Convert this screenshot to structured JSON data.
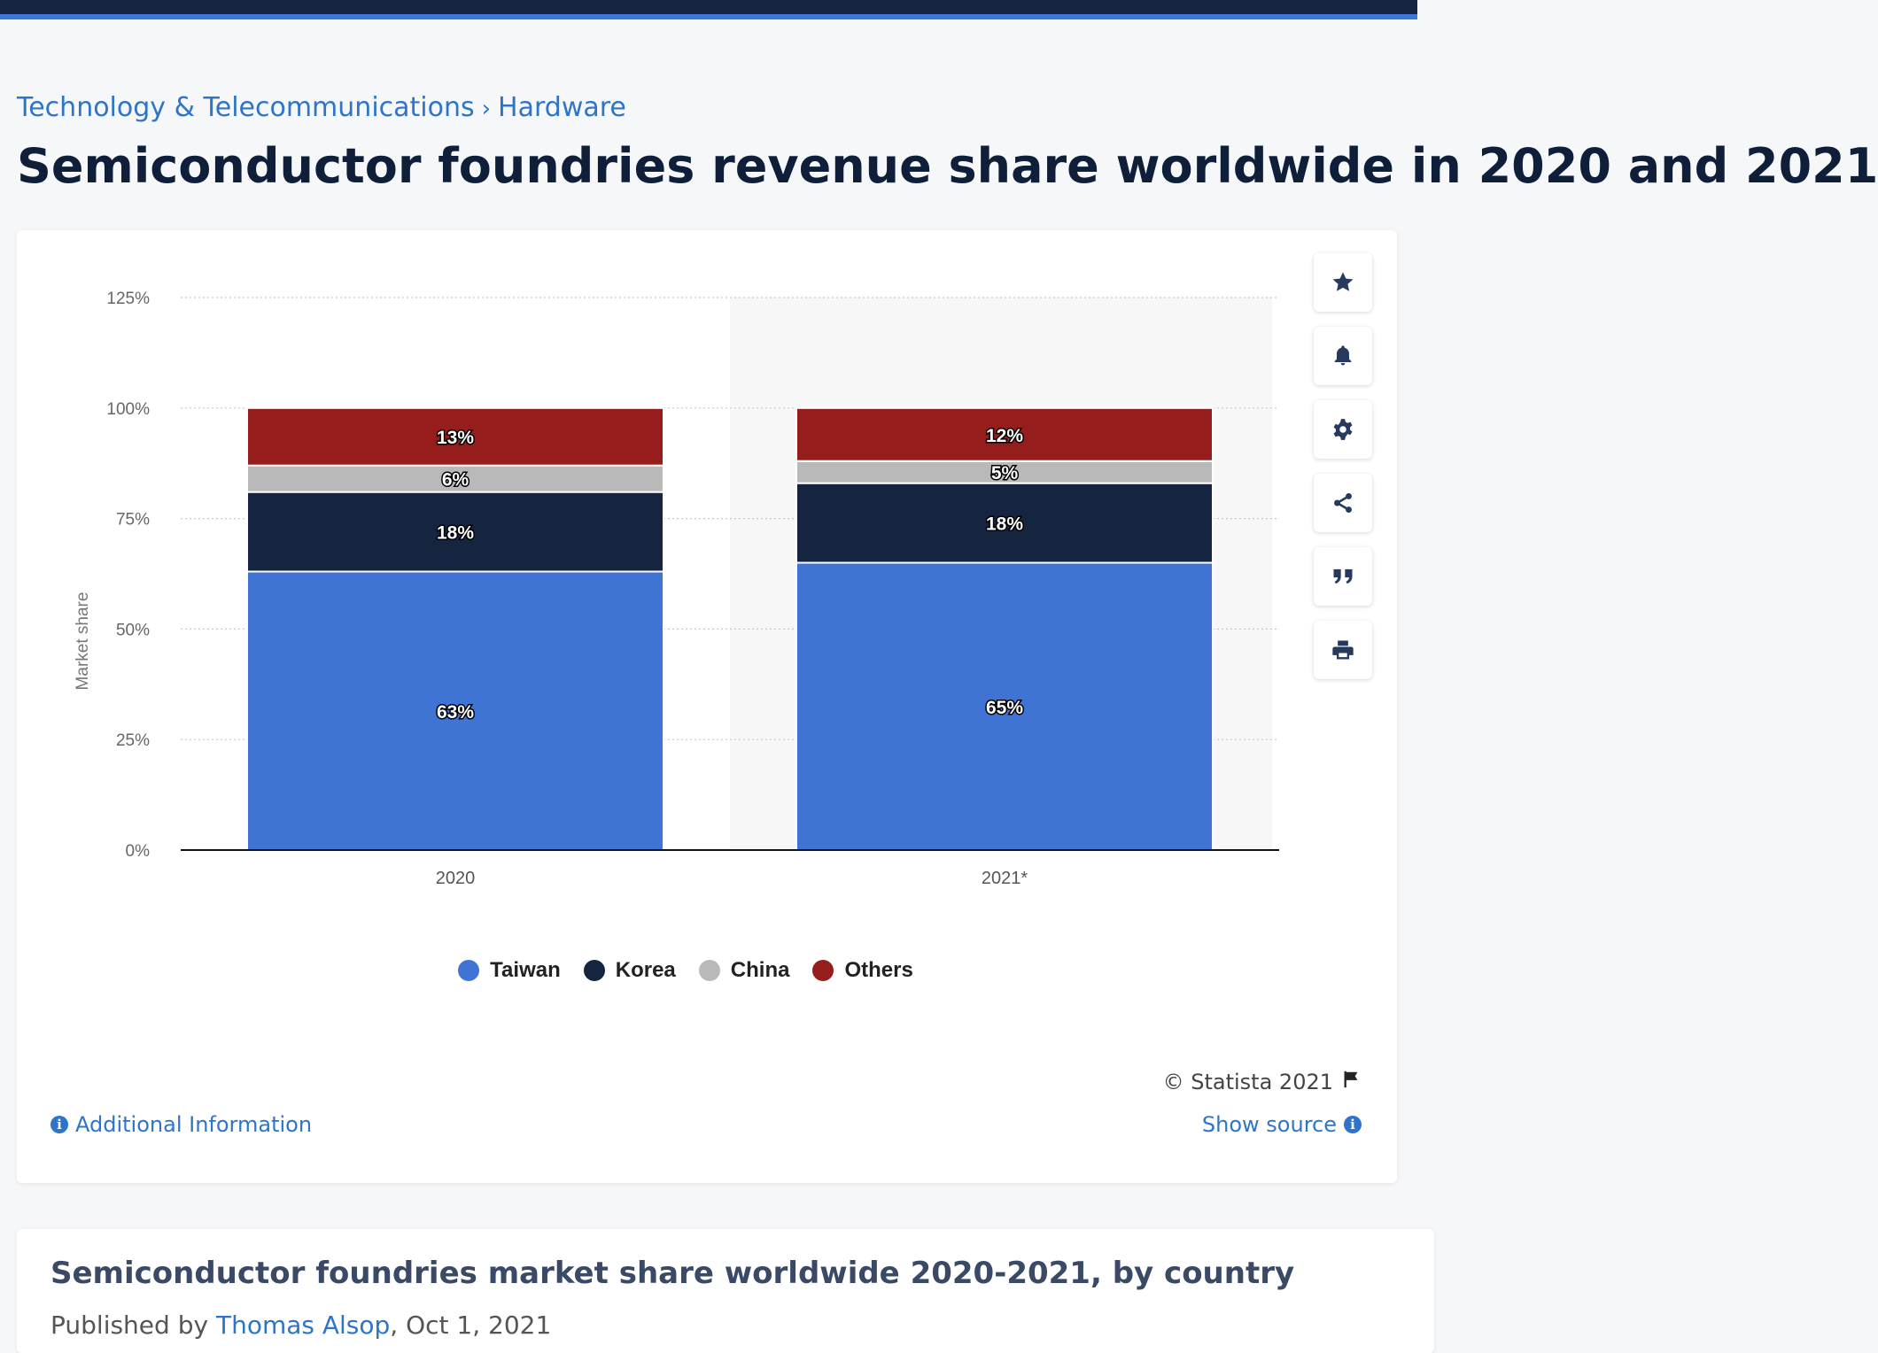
{
  "breadcrumb": {
    "category": "Technology & Telecommunications",
    "separator": "›",
    "subcategory": "Hardware"
  },
  "page_title": "Semiconductor foundries revenue share worldwide in 2020 and 2021",
  "toolbar": [
    {
      "icon": "star-icon"
    },
    {
      "icon": "bell-icon"
    },
    {
      "icon": "gear-icon"
    },
    {
      "icon": "share-icon"
    },
    {
      "icon": "quote-icon"
    },
    {
      "icon": "print-icon"
    }
  ],
  "chart_data": {
    "type": "bar",
    "stacked": true,
    "categories": [
      "2020",
      "2021*"
    ],
    "series": [
      {
        "name": "Taiwan",
        "color": "#3f74d4",
        "values": [
          63,
          65
        ]
      },
      {
        "name": "Korea",
        "color": "#152540",
        "values": [
          18,
          18
        ]
      },
      {
        "name": "China",
        "color": "#b9b9b9",
        "values": [
          6,
          5
        ]
      },
      {
        "name": "Others",
        "color": "#951d1c",
        "values": [
          13,
          12
        ]
      }
    ],
    "ylabel": "Market share",
    "ylim": [
      0,
      125
    ],
    "yticks": [
      0,
      25,
      50,
      75,
      100,
      125
    ],
    "ytick_labels": [
      "0%",
      "25%",
      "50%",
      "75%",
      "100%",
      "125%"
    ],
    "value_suffix": "%",
    "grid": true,
    "legend_position": "bottom"
  },
  "footer": {
    "copyright": "© Statista 2021",
    "additional_info": "Additional Information",
    "show_source": "Show source"
  },
  "card2": {
    "title": "Semiconductor foundries market share worldwide 2020-2021, by country",
    "byline_prefix": "Published by",
    "author": "Thomas Alsop",
    "date": "Oct 1, 2021"
  }
}
